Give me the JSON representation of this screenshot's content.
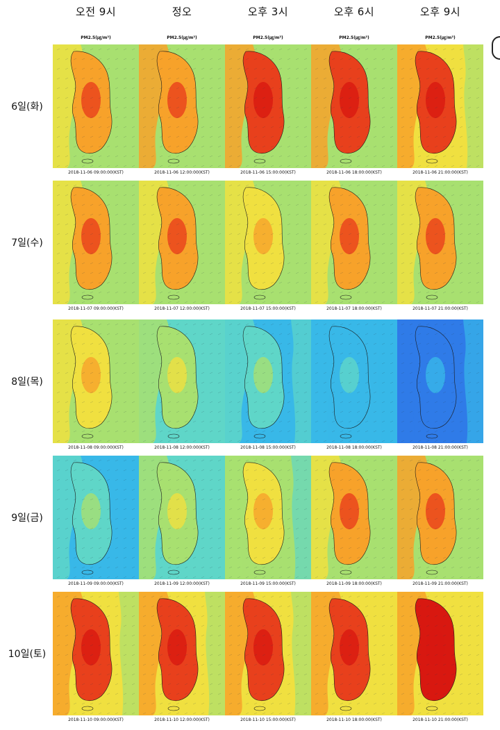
{
  "columns": [
    "오전 9시",
    "정오",
    "오후 3시",
    "오후 6시",
    "오후 9시"
  ],
  "panel_label": "PM2.5(㎍/m³)",
  "rows": [
    {
      "label": "6일(화)",
      "levels": [
        0.78,
        0.8,
        0.82,
        0.84,
        0.86
      ],
      "timestamps": [
        "2018-11-06 09:00:00(KST)",
        "2018-11-06 12:00:00(KST)",
        "2018-11-06 15:00:00(KST)",
        "2018-11-06 18:00:00(KST)",
        "2018-11-06 21:00:00(KST)"
      ]
    },
    {
      "label": "7일(수)",
      "levels": [
        0.72,
        0.72,
        0.68,
        0.7,
        0.74
      ],
      "timestamps": [
        "2018-11-07 09:00:00(KST)",
        "2018-11-07 12:00:00(KST)",
        "2018-11-07 15:00:00(KST)",
        "2018-11-07 18:00:00(KST)",
        "2018-11-07 21:00:00(KST)"
      ]
    },
    {
      "label": "8일(목)",
      "levels": [
        0.66,
        0.5,
        0.38,
        0.2,
        0.14
      ],
      "timestamps": [
        "2018-11-08 09:00:00(KST)",
        "2018-11-08 12:00:00(KST)",
        "2018-11-08 15:00:00(KST)",
        "2018-11-08 18:00:00(KST)",
        "2018-11-08 21:00:00(KST)"
      ]
    },
    {
      "label": "9일(금)",
      "levels": [
        0.34,
        0.5,
        0.62,
        0.76,
        0.8
      ],
      "timestamps": [
        "2018-11-09 09:00:00(KST)",
        "2018-11-09 12:00:00(KST)",
        "2018-11-09 15:00:00(KST)",
        "2018-11-09 18:00:00(KST)",
        "2018-11-09 21:00:00(KST)"
      ]
    },
    {
      "label": "10일(토)",
      "levels": [
        0.88,
        0.88,
        0.9,
        0.92,
        0.94
      ],
      "timestamps": [
        "2018-11-10 09:00:00(KST)",
        "2018-11-10 12:00:00(KST)",
        "2018-11-10 15:00:00(KST)",
        "2018-11-10 18:00:00(KST)",
        "2018-11-10 21:00:00(KST)"
      ]
    }
  ],
  "colors": {
    "scale": [
      "#1f3fd6",
      "#2f7be8",
      "#38b8e8",
      "#5fd6c8",
      "#a8e070",
      "#f0e040",
      "#f7a22a",
      "#e8401c",
      "#d81810"
    ],
    "outline": "#1a1a1a"
  }
}
